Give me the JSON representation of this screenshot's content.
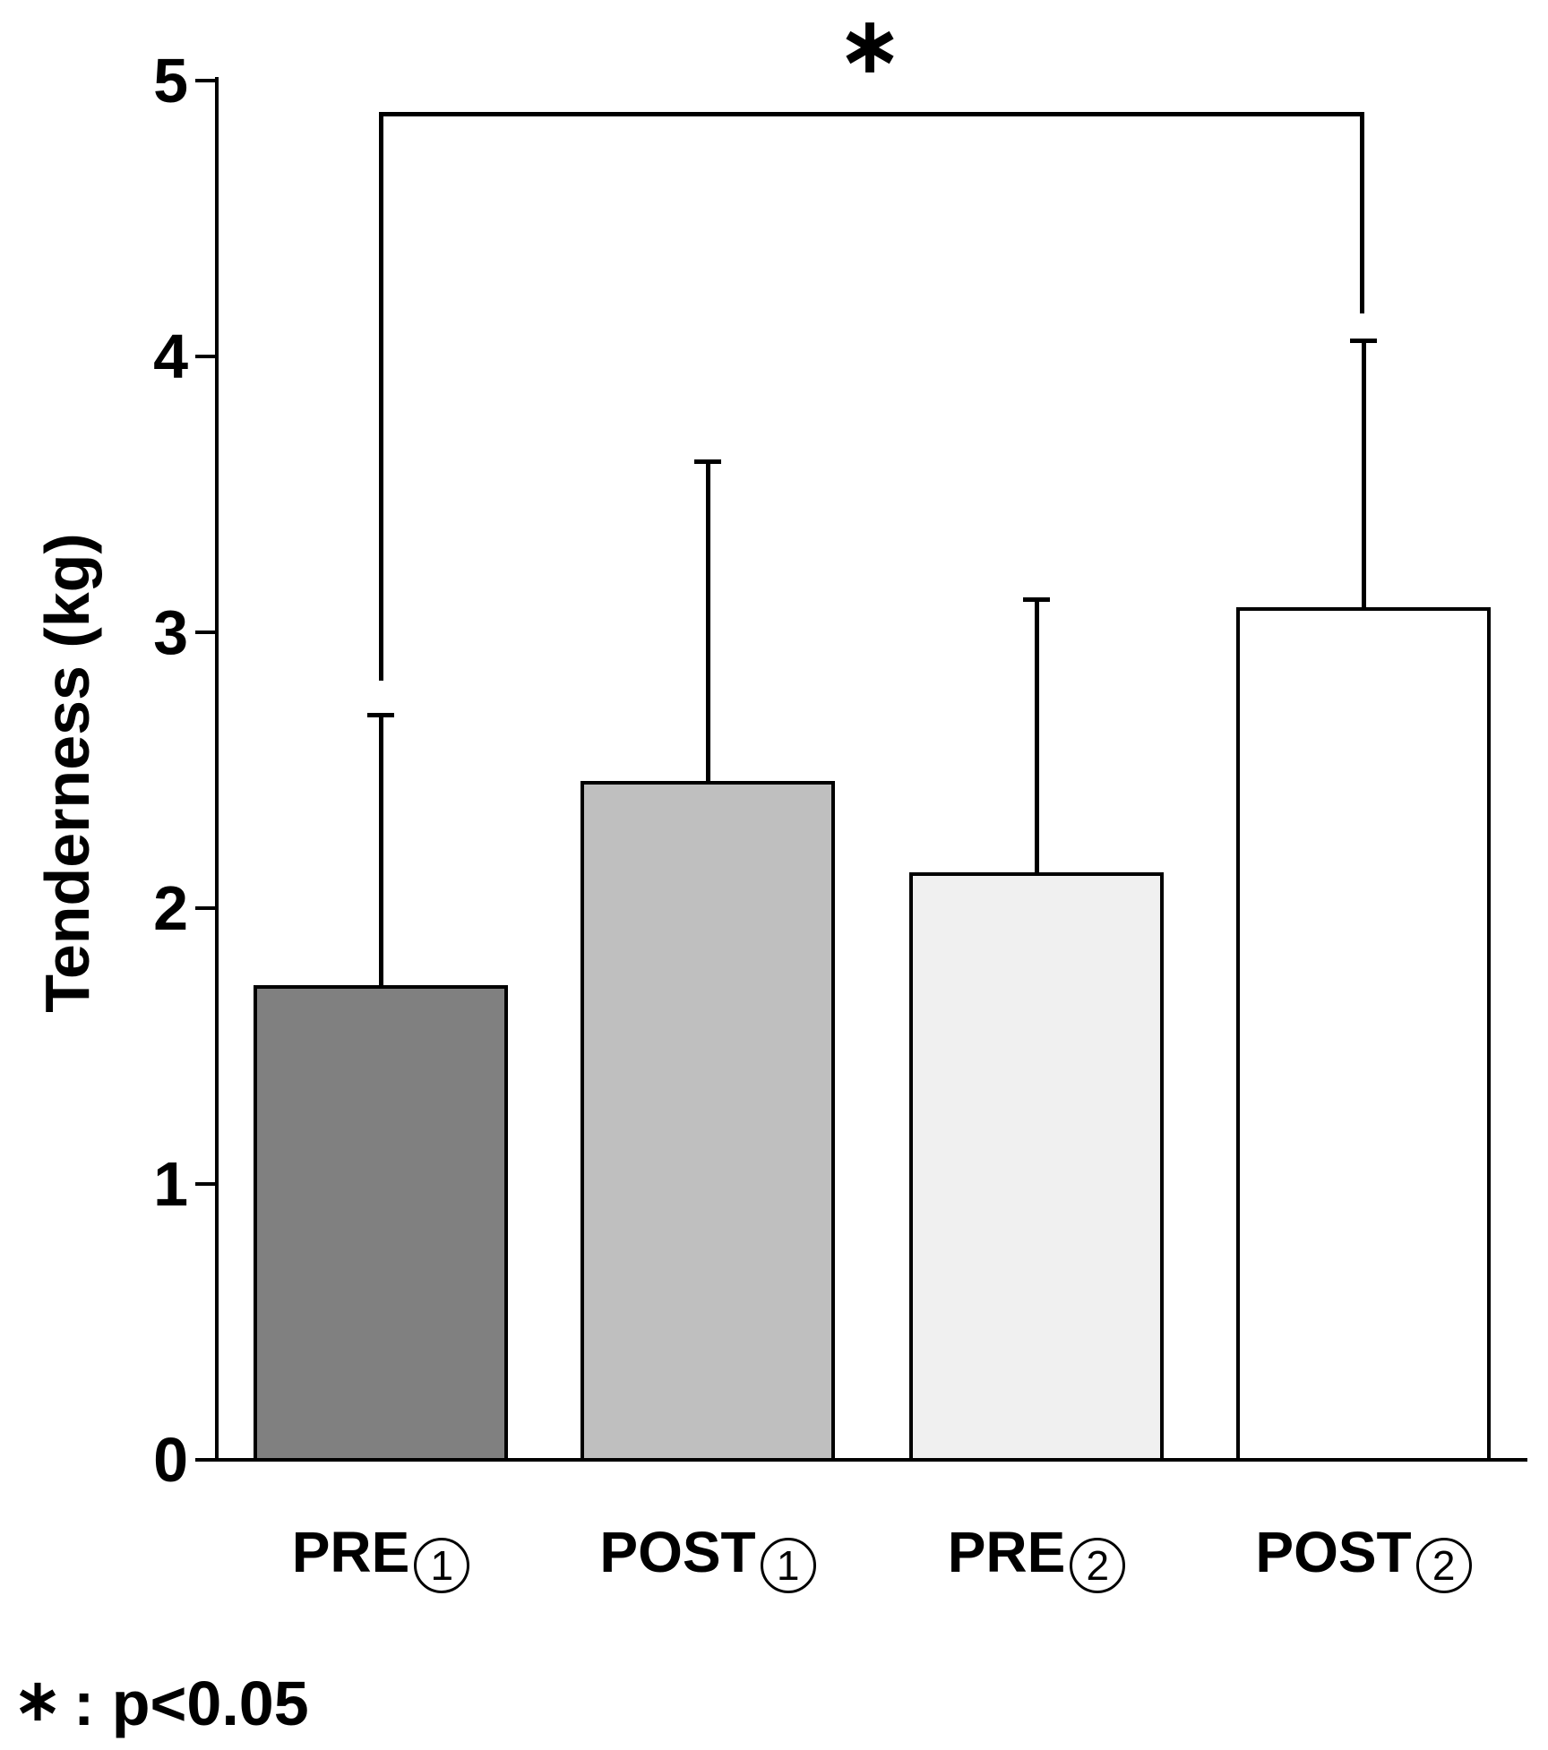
{
  "figure": {
    "footnote": {
      "label": "* : p<0.05",
      "symbol": "*",
      "rest": ": p<0.05"
    }
  },
  "chart_data": {
    "type": "bar",
    "title": "",
    "xlabel": "",
    "ylabel": "Tenderness (kg)",
    "categories": [
      "PRE①",
      "POST①",
      "PRE②",
      "POST②"
    ],
    "category_parts": [
      {
        "prefix": "PRE",
        "digit": "1"
      },
      {
        "prefix": "POST",
        "digit": "1"
      },
      {
        "prefix": "PRE",
        "digit": "2"
      },
      {
        "prefix": "POST",
        "digit": "2"
      }
    ],
    "values": [
      1.72,
      2.46,
      2.13,
      3.09
    ],
    "errors_upper": [
      0.98,
      1.16,
      0.99,
      0.97
    ],
    "error_tops": [
      2.7,
      3.62,
      3.12,
      4.06
    ],
    "ylim": [
      0,
      5
    ],
    "yticks": [
      0,
      1,
      2,
      3,
      4,
      5
    ],
    "grid": "off",
    "legend": "none",
    "bar_colors": [
      "#808080",
      "#bfbfbf",
      "#f0f0f0",
      "#ffffff"
    ],
    "bar_border_color": "#000000",
    "significance": {
      "symbol": "*",
      "from": "PRE①",
      "to": "POST②",
      "note": "p<0.05"
    }
  }
}
